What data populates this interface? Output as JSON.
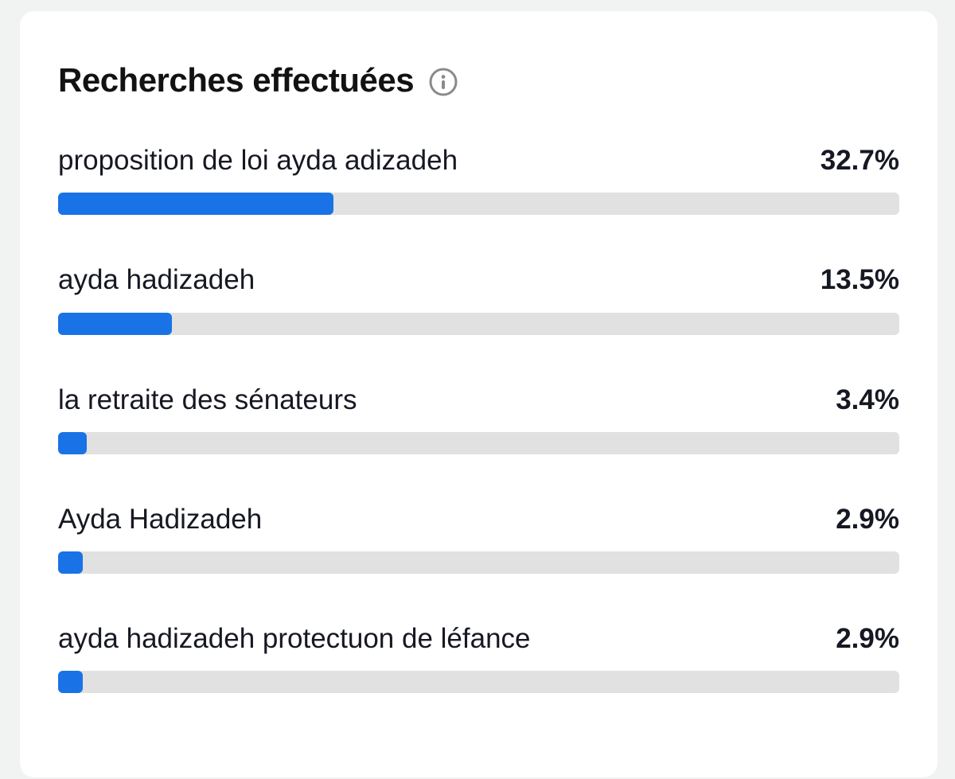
{
  "page": {
    "background": "#f1f2f2",
    "card_background": "#ffffff"
  },
  "header": {
    "title": "Recherches effectuées",
    "info_icon": "info-icon"
  },
  "colors": {
    "bar_fill": "#1973e6",
    "bar_track": "#e1e1e1",
    "text_primary": "#161823",
    "title_text": "#121212",
    "info_icon_gray": "#8a8a8a"
  },
  "chart_data": {
    "type": "bar",
    "orientation": "horizontal",
    "title": "Recherches effectuées",
    "unit": "%",
    "categories": [
      "proposition de loi ayda adizadeh",
      "ayda hadizadeh",
      "la retraite des sénateurs",
      "Ayda Hadizadeh",
      "ayda hadizadeh protectuon de léfance"
    ],
    "values": [
      32.7,
      13.5,
      3.4,
      2.9,
      2.9
    ],
    "value_labels": [
      "32.7%",
      "13.5%",
      "3.4%",
      "2.9%",
      "2.9%"
    ],
    "xlim": [
      0,
      100
    ],
    "grid": false,
    "legend": false
  }
}
